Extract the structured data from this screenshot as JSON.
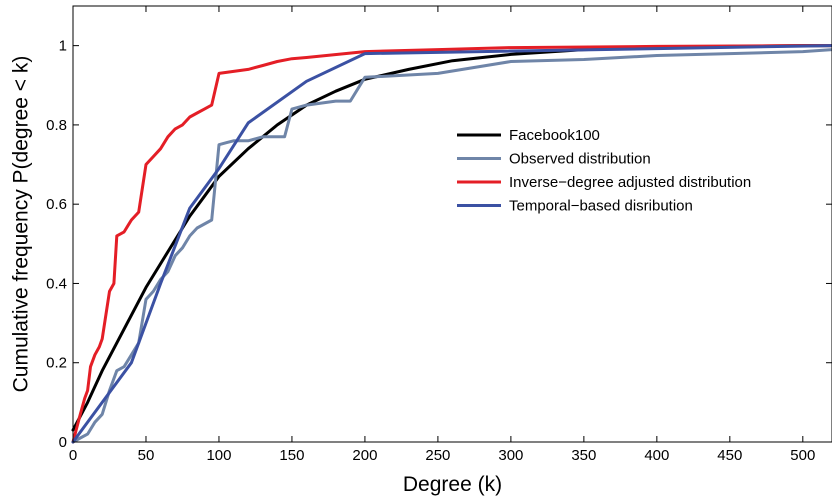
{
  "chart_data": {
    "type": "line",
    "title": "",
    "xlabel": "Degree (k)",
    "ylabel": "Cumulative frequency P(degree < k)",
    "xlim": [
      0,
      520
    ],
    "ylim": [
      0,
      1.1
    ],
    "xticks": [
      0,
      50,
      100,
      150,
      200,
      250,
      300,
      350,
      400,
      450,
      500
    ],
    "yticks": [
      0,
      0.2,
      0.4,
      0.6,
      0.8,
      1
    ],
    "ytick_labels": [
      "0",
      "0.2",
      "0.4",
      "0.6",
      "0.8",
      "1"
    ],
    "grid": false,
    "legend_position": "center-right",
    "series": [
      {
        "name": "Facebook100",
        "color": "#000000",
        "x": [
          0,
          10,
          20,
          30,
          40,
          50,
          60,
          70,
          80,
          90,
          100,
          120,
          140,
          160,
          180,
          200,
          230,
          260,
          300,
          350,
          400,
          450,
          500,
          520
        ],
        "y": [
          0.03,
          0.1,
          0.18,
          0.25,
          0.32,
          0.39,
          0.45,
          0.51,
          0.57,
          0.62,
          0.67,
          0.74,
          0.8,
          0.85,
          0.885,
          0.915,
          0.94,
          0.962,
          0.978,
          0.99,
          0.995,
          0.998,
          1.0,
          1.0
        ]
      },
      {
        "name": "Observed distribution",
        "color": "#6f85a8",
        "x": [
          0,
          5,
          10,
          15,
          20,
          25,
          30,
          35,
          40,
          45,
          50,
          55,
          60,
          65,
          70,
          75,
          80,
          85,
          90,
          95,
          100,
          105,
          110,
          115,
          120,
          125,
          130,
          135,
          140,
          145,
          150,
          155,
          160,
          170,
          180,
          190,
          200,
          250,
          300,
          350,
          400,
          450,
          500,
          520
        ],
        "y": [
          0.0,
          0.01,
          0.02,
          0.05,
          0.07,
          0.13,
          0.18,
          0.19,
          0.22,
          0.25,
          0.36,
          0.38,
          0.41,
          0.43,
          0.47,
          0.49,
          0.52,
          0.54,
          0.55,
          0.56,
          0.75,
          0.755,
          0.76,
          0.76,
          0.76,
          0.765,
          0.77,
          0.77,
          0.77,
          0.77,
          0.84,
          0.845,
          0.85,
          0.855,
          0.86,
          0.86,
          0.92,
          0.93,
          0.96,
          0.965,
          0.975,
          0.98,
          0.985,
          0.99
        ]
      },
      {
        "name": "Inverse−degree adjusted distribution",
        "color": "#e41e26",
        "x": [
          0,
          5,
          8,
          10,
          12,
          15,
          18,
          20,
          25,
          28,
          30,
          35,
          40,
          45,
          50,
          55,
          60,
          65,
          70,
          75,
          80,
          85,
          90,
          95,
          100,
          110,
          120,
          130,
          140,
          150,
          160,
          200,
          250,
          300,
          400,
          500,
          520
        ],
        "y": [
          0.0,
          0.07,
          0.11,
          0.13,
          0.19,
          0.22,
          0.24,
          0.26,
          0.38,
          0.4,
          0.52,
          0.53,
          0.56,
          0.58,
          0.7,
          0.72,
          0.74,
          0.77,
          0.79,
          0.8,
          0.82,
          0.83,
          0.84,
          0.85,
          0.93,
          0.935,
          0.94,
          0.95,
          0.96,
          0.967,
          0.97,
          0.985,
          0.99,
          0.995,
          0.998,
          1.0,
          1.0
        ]
      },
      {
        "name": "Temporal−based disribution",
        "color": "#3b51a3",
        "x": [
          0,
          40,
          60,
          80,
          100,
          120,
          160,
          200,
          520
        ],
        "y": [
          0.0,
          0.2,
          0.4,
          0.59,
          0.69,
          0.805,
          0.91,
          0.98,
          1.0
        ]
      }
    ]
  }
}
